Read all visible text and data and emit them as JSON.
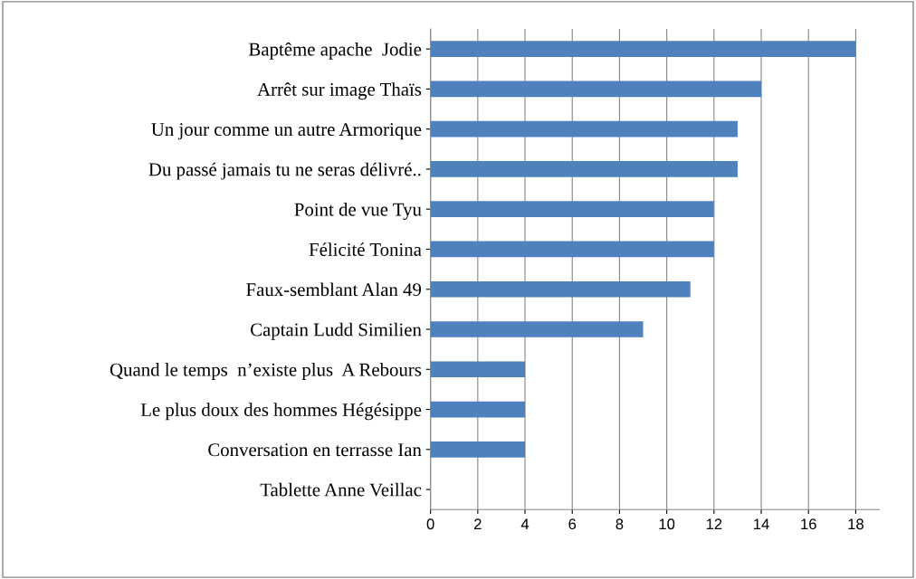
{
  "chart_data": {
    "type": "bar",
    "orientation": "horizontal",
    "categories": [
      "Baptême apache  Jodie",
      "Arrêt sur image Thaïs",
      "Un jour comme un autre Armorique",
      "Du passé jamais tu ne seras délivré..",
      "Point de vue Tyu",
      "Félicité Tonina",
      "Faux-semblant Alan 49",
      "Captain Ludd Similien",
      "Quand le temps  n’existe plus  A Rebours",
      "Le plus doux des hommes Hégésippe",
      "Conversation en terrasse Ian",
      "Tablette Anne Veillac"
    ],
    "values": [
      18,
      14,
      13,
      13,
      12,
      12,
      11,
      9,
      4,
      4,
      4,
      0
    ],
    "color": "#4f81bd",
    "xlim": [
      0,
      19
    ],
    "xticks": [
      0,
      2,
      4,
      6,
      8,
      10,
      12,
      14,
      16,
      18
    ],
    "grid": "x",
    "legend": false
  }
}
